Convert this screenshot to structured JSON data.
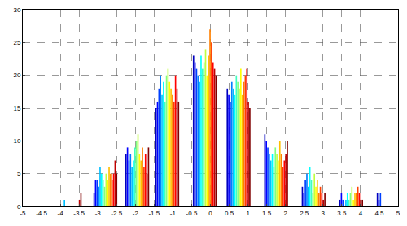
{
  "chart_data": {
    "type": "bar",
    "xlim": [
      -5,
      5
    ],
    "xticks": [
      -5,
      -4.5,
      -4,
      -3.5,
      -3,
      -2.5,
      -2,
      -1.5,
      -1,
      -0.5,
      0,
      0.5,
      1,
      1.5,
      2,
      2.5,
      3,
      3.5,
      4,
      4.5,
      5
    ],
    "ylim": [
      0,
      30
    ],
    "yticks": [
      0,
      5,
      10,
      15,
      20,
      25,
      30
    ],
    "grid": true,
    "series": [
      {
        "color": "#0000bf",
        "x": [
          -4.05,
          -3.1,
          -2.25,
          -1.45,
          -0.45,
          0.45,
          1.45,
          2.45,
          3.45,
          4.45
        ],
        "values": [
          0,
          2,
          8,
          15,
          23,
          18,
          11,
          3,
          1,
          2
        ]
      },
      {
        "color": "#0000ff",
        "x": [
          -4.01,
          -3.06,
          -2.21,
          -1.41,
          -0.41,
          0.49,
          1.49,
          2.49,
          3.49,
          4.49
        ],
        "values": [
          0,
          4,
          9,
          16,
          22,
          17,
          10,
          2,
          2,
          1
        ]
      },
      {
        "color": "#0040ff",
        "x": [
          -3.97,
          -3.02,
          -2.17,
          -1.37,
          -0.37,
          0.53,
          1.53,
          2.53,
          3.53,
          4.53
        ],
        "values": [
          0,
          4,
          7,
          18,
          21,
          16,
          9,
          4,
          1,
          2
        ]
      },
      {
        "color": "#0080ff",
        "x": [
          -3.93,
          -2.98,
          -2.13,
          -1.33,
          -0.33,
          0.57,
          1.57,
          2.57,
          3.57
        ],
        "values": [
          0,
          3,
          8,
          20,
          20,
          19,
          8,
          5,
          0
        ]
      },
      {
        "color": "#00bfff",
        "x": [
          -3.89,
          -2.94,
          -2.09,
          -1.29,
          -0.29,
          0.61,
          1.61,
          2.61,
          3.61
        ],
        "values": [
          1,
          6,
          6,
          17,
          19,
          18,
          7,
          3,
          1
        ]
      },
      {
        "color": "#00ffff",
        "x": [
          -3.85,
          -2.9,
          -2.05,
          -1.25,
          -0.25,
          0.65,
          1.65,
          2.65,
          3.65
        ],
        "values": [
          0,
          5,
          7,
          19,
          23,
          17,
          8,
          6,
          2
        ]
      },
      {
        "color": "#40ffbf",
        "x": [
          -3.81,
          -2.86,
          -2.01,
          -1.21,
          -0.21,
          0.69,
          1.69,
          2.69,
          3.69
        ],
        "values": [
          0,
          4,
          9,
          16,
          21,
          20,
          6,
          4,
          1
        ]
      },
      {
        "color": "#80ff80",
        "x": [
          -3.77,
          -2.82,
          -1.97,
          -1.17,
          -0.17,
          0.73,
          1.73,
          2.73,
          3.73
        ],
        "values": [
          0,
          3,
          10,
          20,
          22,
          19,
          9,
          2,
          2
        ]
      },
      {
        "color": "#bfff40",
        "x": [
          -3.73,
          -2.78,
          -1.93,
          -1.13,
          -0.13,
          0.77,
          1.77,
          2.77,
          3.77
        ],
        "values": [
          0,
          5,
          11,
          21,
          24,
          18,
          8,
          5,
          3
        ]
      },
      {
        "color": "#ffff00",
        "x": [
          -3.69,
          -2.74,
          -1.89,
          -1.09,
          -0.09,
          0.81,
          1.81,
          2.81,
          3.81
        ],
        "values": [
          0,
          4,
          8,
          19,
          20,
          21,
          7,
          3,
          1
        ]
      },
      {
        "color": "#ffbf00",
        "x": [
          -3.65,
          -2.7,
          -1.85,
          -1.05,
          -0.05,
          0.85,
          1.85,
          2.85,
          3.85
        ],
        "values": [
          0,
          6,
          7,
          18,
          23,
          17,
          10,
          4,
          2
        ]
      },
      {
        "color": "#ff8000",
        "x": [
          -3.61,
          -2.66,
          -1.81,
          -1.01,
          -0.01,
          0.89,
          1.89,
          2.89,
          3.89
        ],
        "values": [
          0,
          5,
          9,
          17,
          27,
          19,
          8,
          2,
          2
        ]
      },
      {
        "color": "#ff4000",
        "x": [
          -3.57,
          -2.62,
          -1.77,
          -0.97,
          0.03,
          0.93,
          1.93,
          2.93,
          3.93
        ],
        "values": [
          0,
          4,
          6,
          16,
          25,
          20,
          6,
          3,
          3
        ]
      },
      {
        "color": "#ff0000",
        "x": [
          -3.53,
          -2.58,
          -1.73,
          -0.93,
          0.07,
          0.97,
          1.97,
          2.97,
          3.97
        ],
        "values": [
          0,
          5,
          8,
          20,
          22,
          21,
          7,
          2,
          2
        ]
      },
      {
        "color": "#bf0000",
        "x": [
          -3.49,
          -2.54,
          -1.69,
          -0.89,
          0.11,
          1.01,
          2.01,
          3.01,
          4.01
        ],
        "values": [
          1,
          7,
          5,
          18,
          21,
          16,
          8,
          1,
          1
        ]
      },
      {
        "color": "#800000",
        "x": [
          -3.45,
          -2.5,
          -1.65,
          -0.85,
          0.15,
          1.05,
          2.05,
          3.05,
          4.05
        ],
        "values": [
          2,
          5,
          9,
          16,
          20,
          15,
          10,
          2,
          1
        ]
      }
    ]
  }
}
